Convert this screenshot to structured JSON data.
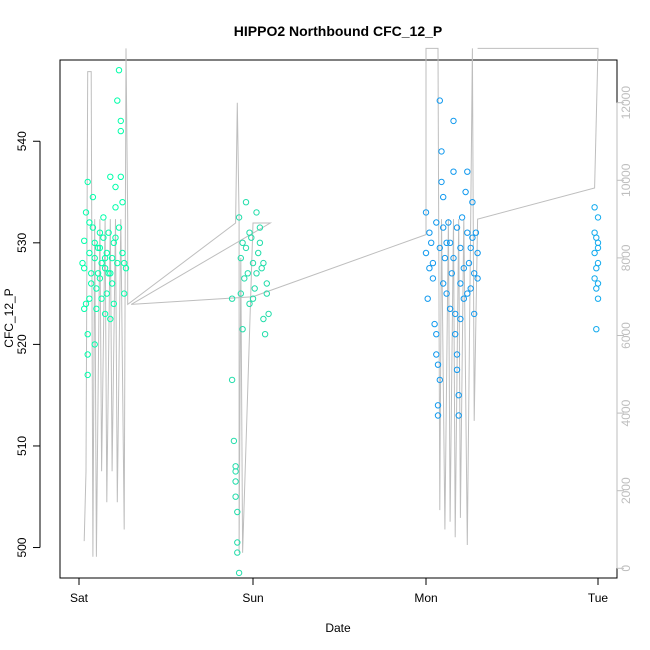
{
  "chart_data": {
    "type": "scatter",
    "title": "HIPPO2 Northbound CFC_12_P",
    "xlabel": "Date",
    "ylabel": "CFC_12_P",
    "x_ticks": [
      "Sat",
      "Sun",
      "Mon",
      "Tue"
    ],
    "ylim": [
      497,
      548
    ],
    "y_ticks": [
      500,
      510,
      520,
      530,
      540
    ],
    "y2lim": [
      -250,
      13100
    ],
    "y2_ticks": [
      0,
      2000,
      4000,
      6000,
      8000,
      10000,
      12000
    ],
    "grid": false,
    "colors": {
      "series_sat": "#00ffaa",
      "series_sun": "#22ddaa",
      "series_mon": "#1199ee",
      "series_tue": "#11aaee",
      "altitude_line": "#bebebe",
      "axis": "#000000"
    },
    "series": [
      {
        "marker": "open-circle",
        "points": [
          [
            0.02,
            528.0
          ],
          [
            0.03,
            527.5
          ],
          [
            0.03,
            530.2
          ],
          [
            0.04,
            533.0
          ],
          [
            0.04,
            524.0
          ],
          [
            0.05,
            536.0
          ],
          [
            0.05,
            521.0
          ],
          [
            0.05,
            519.0
          ],
          [
            0.05,
            517.0
          ],
          [
            0.06,
            532.0
          ],
          [
            0.06,
            529.0
          ],
          [
            0.07,
            527.0
          ],
          [
            0.07,
            526.0
          ],
          [
            0.08,
            534.5
          ],
          [
            0.08,
            531.5
          ],
          [
            0.09,
            528.5
          ],
          [
            0.09,
            530.0
          ],
          [
            0.1,
            525.5
          ],
          [
            0.1,
            523.5
          ],
          [
            0.11,
            527.0
          ],
          [
            0.11,
            529.5
          ],
          [
            0.12,
            531.0
          ],
          [
            0.12,
            526.5
          ],
          [
            0.13,
            528.0
          ],
          [
            0.13,
            524.5
          ],
          [
            0.14,
            530.5
          ],
          [
            0.14,
            532.5
          ],
          [
            0.15,
            527.5
          ],
          [
            0.15,
            523.0
          ],
          [
            0.16,
            529.0
          ],
          [
            0.16,
            525.0
          ],
          [
            0.17,
            527.0
          ],
          [
            0.17,
            531.0
          ],
          [
            0.18,
            536.5
          ],
          [
            0.18,
            522.5
          ],
          [
            0.19,
            528.5
          ],
          [
            0.19,
            526.0
          ],
          [
            0.2,
            524.0
          ],
          [
            0.2,
            530.0
          ],
          [
            0.21,
            535.5
          ],
          [
            0.21,
            533.5
          ],
          [
            0.22,
            528.0
          ],
          [
            0.22,
            544.0
          ],
          [
            0.23,
            531.5
          ],
          [
            0.23,
            547.0
          ],
          [
            0.24,
            536.5
          ],
          [
            0.24,
            542.0
          ],
          [
            0.24,
            541.0
          ],
          [
            0.25,
            534.0
          ],
          [
            0.25,
            529.0
          ],
          [
            0.26,
            528.0
          ],
          [
            0.26,
            525.0
          ],
          [
            0.27,
            527.5
          ],
          [
            0.03,
            523.5
          ],
          [
            0.06,
            524.5
          ],
          [
            0.09,
            520.0
          ],
          [
            0.12,
            529.5
          ],
          [
            0.15,
            528.5
          ],
          [
            0.18,
            527.0
          ],
          [
            0.21,
            530.5
          ]
        ],
        "color_key": "series_sat"
      },
      {
        "marker": "open-circle",
        "points": [
          [
            0.88,
            524.5
          ],
          [
            0.88,
            516.5
          ],
          [
            0.89,
            510.5
          ],
          [
            0.9,
            508.0
          ],
          [
            0.9,
            507.5
          ],
          [
            0.9,
            506.5
          ],
          [
            0.9,
            505.0
          ],
          [
            0.91,
            503.5
          ],
          [
            0.91,
            500.5
          ],
          [
            0.91,
            499.5
          ],
          [
            0.92,
            497.5
          ],
          [
            0.92,
            532.5
          ],
          [
            0.93,
            528.5
          ],
          [
            0.93,
            525.0
          ],
          [
            0.94,
            530.0
          ],
          [
            0.95,
            526.5
          ],
          [
            0.96,
            529.5
          ],
          [
            0.97,
            527.0
          ],
          [
            0.98,
            524.0
          ],
          [
            0.99,
            530.5
          ],
          [
            1.0,
            528.0
          ],
          [
            1.01,
            525.5
          ],
          [
            1.02,
            533.0
          ],
          [
            1.03,
            529.0
          ],
          [
            1.04,
            531.5
          ],
          [
            1.05,
            527.5
          ],
          [
            1.06,
            522.5
          ],
          [
            1.07,
            521.0
          ],
          [
            1.08,
            526.0
          ],
          [
            1.09,
            523.0
          ],
          [
            0.94,
            521.5
          ],
          [
            0.96,
            534.0
          ],
          [
            0.98,
            531.0
          ],
          [
            1.0,
            524.5
          ],
          [
            1.02,
            527.0
          ],
          [
            1.04,
            530.0
          ],
          [
            1.06,
            528.0
          ],
          [
            1.08,
            525.0
          ]
        ],
        "color_key": "series_sun"
      },
      {
        "marker": "open-circle",
        "points": [
          [
            2.0,
            533.0
          ],
          [
            2.0,
            529.0
          ],
          [
            2.01,
            524.5
          ],
          [
            2.02,
            527.5
          ],
          [
            2.03,
            530.0
          ],
          [
            2.04,
            526.5
          ],
          [
            2.05,
            522.0
          ],
          [
            2.06,
            521.0
          ],
          [
            2.06,
            519.0
          ],
          [
            2.07,
            518.0
          ],
          [
            2.07,
            514.0
          ],
          [
            2.07,
            513.0
          ],
          [
            2.08,
            516.5
          ],
          [
            2.08,
            544.0
          ],
          [
            2.09,
            539.0
          ],
          [
            2.09,
            536.0
          ],
          [
            2.1,
            534.5
          ],
          [
            2.1,
            531.5
          ],
          [
            2.11,
            528.5
          ],
          [
            2.12,
            525.0
          ],
          [
            2.13,
            532.0
          ],
          [
            2.14,
            530.0
          ],
          [
            2.15,
            527.0
          ],
          [
            2.16,
            542.0
          ],
          [
            2.16,
            537.0
          ],
          [
            2.17,
            523.0
          ],
          [
            2.17,
            521.0
          ],
          [
            2.18,
            519.0
          ],
          [
            2.18,
            517.5
          ],
          [
            2.19,
            515.0
          ],
          [
            2.19,
            513.0
          ],
          [
            2.2,
            529.5
          ],
          [
            2.2,
            526.0
          ],
          [
            2.21,
            532.5
          ],
          [
            2.22,
            524.5
          ],
          [
            2.23,
            535.0
          ],
          [
            2.24,
            537.0
          ],
          [
            2.24,
            531.0
          ],
          [
            2.25,
            528.0
          ],
          [
            2.26,
            525.5
          ],
          [
            2.27,
            534.0
          ],
          [
            2.27,
            530.5
          ],
          [
            2.28,
            527.0
          ],
          [
            2.28,
            523.0
          ],
          [
            2.29,
            531.0
          ],
          [
            2.3,
            529.0
          ],
          [
            2.3,
            526.5
          ],
          [
            2.02,
            531.0
          ],
          [
            2.04,
            528.0
          ],
          [
            2.06,
            532.0
          ],
          [
            2.08,
            529.5
          ],
          [
            2.1,
            526.0
          ],
          [
            2.12,
            530.0
          ],
          [
            2.14,
            523.5
          ],
          [
            2.16,
            528.5
          ],
          [
            2.18,
            531.5
          ],
          [
            2.2,
            522.5
          ],
          [
            2.22,
            527.5
          ],
          [
            2.24,
            525.0
          ],
          [
            2.26,
            529.5
          ]
        ],
        "color_key": "series_mon"
      },
      {
        "marker": "open-circle",
        "points": [
          [
            2.98,
            533.5
          ],
          [
            2.98,
            531.0
          ],
          [
            2.98,
            529.0
          ],
          [
            2.98,
            526.5
          ],
          [
            2.99,
            525.5
          ],
          [
            2.99,
            521.5
          ],
          [
            2.99,
            527.5
          ],
          [
            2.99,
            530.5
          ],
          [
            3.0,
            530.0
          ],
          [
            3.0,
            528.0
          ],
          [
            3.0,
            526.0
          ],
          [
            3.0,
            524.5
          ],
          [
            3.0,
            529.5
          ],
          [
            3.0,
            532.5
          ]
        ],
        "color_key": "series_tue"
      },
      {
        "marker": "line",
        "axis": "right",
        "points": [
          [
            0.03,
            700
          ],
          [
            0.04,
            2500
          ],
          [
            0.05,
            12800
          ],
          [
            0.07,
            12800
          ],
          [
            0.08,
            300
          ],
          [
            0.09,
            9000
          ],
          [
            0.1,
            300
          ],
          [
            0.12,
            9000
          ],
          [
            0.13,
            2500
          ],
          [
            0.15,
            9000
          ],
          [
            0.16,
            1700
          ],
          [
            0.18,
            9000
          ],
          [
            0.19,
            2500
          ],
          [
            0.21,
            9000
          ],
          [
            0.22,
            1700
          ],
          [
            0.24,
            9000
          ],
          [
            0.26,
            1000
          ],
          [
            0.27,
            13400
          ],
          [
            0.28,
            9000
          ],
          [
            0.28,
            6800
          ],
          [
            0.9,
            8900
          ],
          [
            0.91,
            12000
          ],
          [
            0.92,
            9000
          ],
          [
            0.92,
            400
          ],
          [
            0.93,
            8000
          ],
          [
            0.94,
            400
          ],
          [
            1.0,
            8900
          ],
          [
            1.1,
            8900
          ],
          [
            0.3,
            6800
          ],
          [
            1.0,
            7000
          ],
          [
            2.0,
            8600
          ],
          [
            2.0,
            13400
          ],
          [
            2.07,
            13400
          ],
          [
            2.08,
            1500
          ],
          [
            2.09,
            9000
          ],
          [
            2.11,
            1000
          ],
          [
            2.13,
            9000
          ],
          [
            2.14,
            1200
          ],
          [
            2.16,
            9000
          ],
          [
            2.17,
            800
          ],
          [
            2.19,
            9000
          ],
          [
            2.2,
            1300
          ],
          [
            2.22,
            9000
          ],
          [
            2.24,
            600
          ],
          [
            2.26,
            9000
          ],
          [
            2.27,
            13400
          ],
          [
            2.28,
            3800
          ],
          [
            2.3,
            9000
          ],
          [
            2.98,
            9800
          ],
          [
            3.0,
            13400
          ],
          [
            2.3,
            13400
          ]
        ],
        "color_key": "altitude_line"
      }
    ]
  }
}
